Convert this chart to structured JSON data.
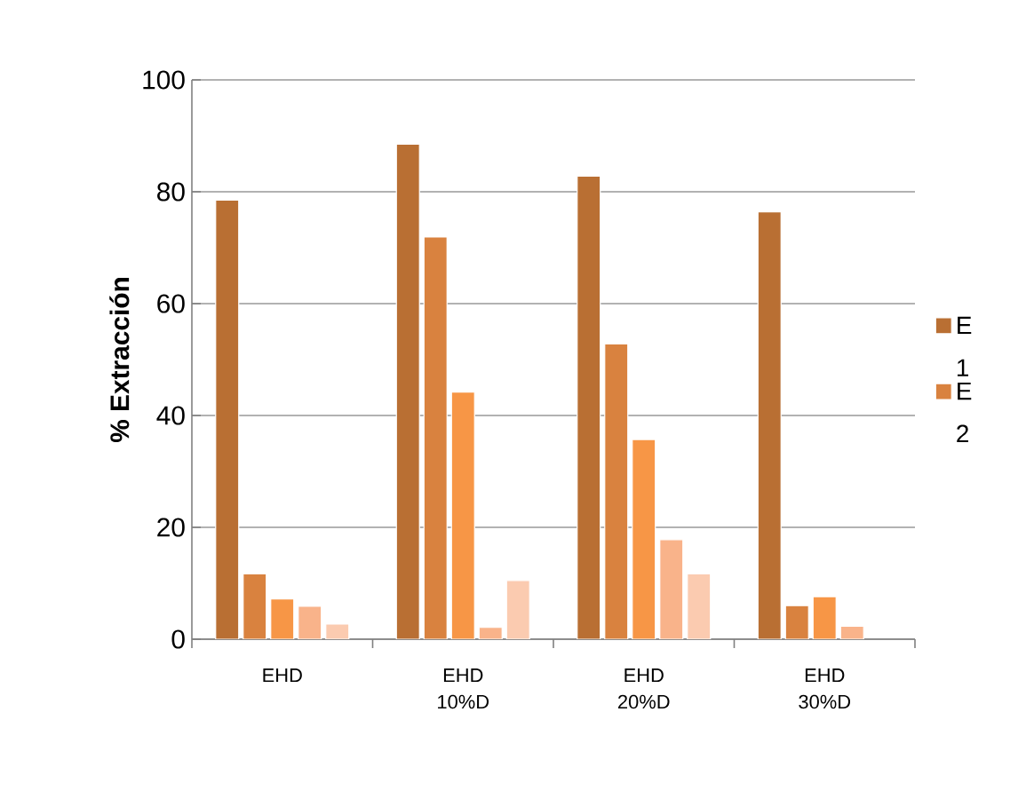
{
  "chart_data": {
    "type": "bar",
    "ylabel": "% Extracción",
    "categories": [
      "EHD",
      "EHD 10%D",
      "EHD 20%D",
      "EHD 30%D"
    ],
    "series": [
      {
        "name": "E 1",
        "color": "#b96f33",
        "values": [
          78.5,
          88.5,
          82.8,
          76.4
        ]
      },
      {
        "name": "E 2",
        "color": "#d9823f",
        "values": [
          11.7,
          71.9,
          52.8,
          6.0
        ]
      },
      {
        "color": "#f79646",
        "values": [
          7.2,
          44.2,
          35.7,
          7.6
        ]
      },
      {
        "color": "#f9b38a",
        "values": [
          5.9,
          2.1,
          17.8,
          2.3
        ]
      },
      {
        "color": "#fbcbb0",
        "values": [
          2.7,
          10.5,
          11.7,
          null
        ]
      }
    ],
    "ylim": [
      0,
      100
    ],
    "yticks": [
      0,
      20,
      40,
      60,
      80,
      100
    ],
    "grid": "y",
    "legend": "right"
  }
}
